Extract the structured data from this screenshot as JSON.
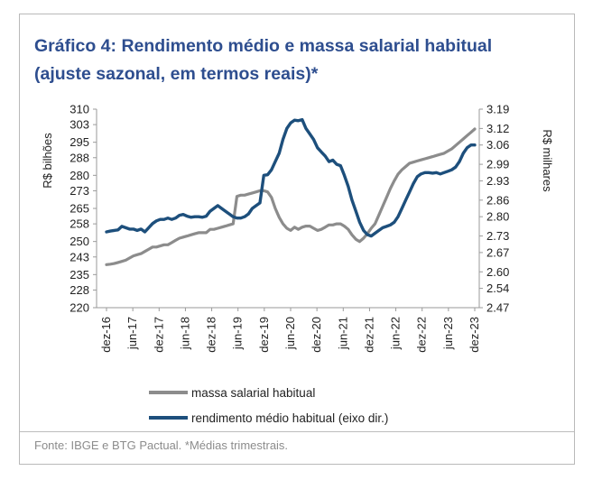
{
  "header": {
    "title_line1": "Gráfico 4: Rendimento médio e massa salarial habitual",
    "title_line2": "(ajuste sazonal, em termos reais)*"
  },
  "footer": {
    "source": "Fonte: IBGE e BTG Pactual. *Médias trimestrais."
  },
  "colors": {
    "title": "#2e4e8f",
    "massa": "#8c8c8c",
    "rendimento": "#1d4f7c"
  },
  "chart_data": {
    "type": "line",
    "ylabel": "R$ bilhões",
    "y2label": "R$ milhares",
    "ylim": [
      220,
      310
    ],
    "y2lim": [
      2.47,
      3.19
    ],
    "yticks": [
      "310",
      "303",
      "295",
      "288",
      "280",
      "273",
      "265",
      "258",
      "250",
      "243",
      "235",
      "228",
      "220"
    ],
    "y2ticks": [
      "3.19",
      "3.12",
      "3.06",
      "2.99",
      "2.93",
      "2.86",
      "2.80",
      "2.73",
      "2.67",
      "2.60",
      "2.54",
      "2.47"
    ],
    "xticks": [
      "dez-16",
      "jun-17",
      "dez-17",
      "jun-18",
      "dez-18",
      "jun-19",
      "dez-19",
      "jun-20",
      "dez-20",
      "jun-21",
      "dez-21",
      "jun-22",
      "dez-22",
      "jun-23",
      "dez-23"
    ],
    "legend_position": "bottom",
    "grid": false,
    "series": [
      {
        "name": "massa salarial habitual",
        "axis": "left",
        "values": [
          239.5,
          239.7,
          240.0,
          240.5,
          241.0,
          241.5,
          242.5,
          243.5,
          244.0,
          244.5,
          245.5,
          246.5,
          247.5,
          247.5,
          248.0,
          248.5,
          248.5,
          249.5,
          250.5,
          251.5,
          252.0,
          252.5,
          253.0,
          253.5,
          254.0,
          254.0,
          254.0,
          255.5,
          255.5,
          256.0,
          256.5,
          257.0,
          257.5,
          258.0,
          270.5,
          271.0,
          271.0,
          271.5,
          272.0,
          272.5,
          273.0,
          273.0,
          272.5,
          270.0,
          265.0,
          261.0,
          258.0,
          256.0,
          255.0,
          256.5,
          255.5,
          256.5,
          257.0,
          257.0,
          256.0,
          255.0,
          255.5,
          256.5,
          257.5,
          257.5,
          258.0,
          258.0,
          257.0,
          255.5,
          253.0,
          251.0,
          250.0,
          251.5,
          253.5,
          256.0,
          258.0,
          262.0,
          266.0,
          270.0,
          274.0,
          277.5,
          280.5,
          282.5,
          284.0,
          285.5,
          286.0,
          286.5,
          287.0,
          287.5,
          288.0,
          288.5,
          289.0,
          289.5,
          290.0,
          291.0,
          292.0,
          293.5,
          295.0,
          296.5,
          298.0,
          299.5,
          301.0
        ]
      },
      {
        "name": "rendimento médio habitual (eixo dir.)",
        "axis": "right",
        "values": [
          2.745,
          2.748,
          2.75,
          2.752,
          2.765,
          2.76,
          2.755,
          2.755,
          2.75,
          2.755,
          2.745,
          2.76,
          2.775,
          2.785,
          2.79,
          2.79,
          2.795,
          2.79,
          2.795,
          2.805,
          2.808,
          2.802,
          2.798,
          2.8,
          2.8,
          2.798,
          2.802,
          2.82,
          2.83,
          2.84,
          2.83,
          2.82,
          2.81,
          2.8,
          2.795,
          2.795,
          2.8,
          2.81,
          2.83,
          2.84,
          2.85,
          2.95,
          2.952,
          2.97,
          3.0,
          3.03,
          3.08,
          3.12,
          3.14,
          3.15,
          3.148,
          3.152,
          3.12,
          3.1,
          3.08,
          3.05,
          3.035,
          3.02,
          3.0,
          3.005,
          2.99,
          2.985,
          2.95,
          2.91,
          2.86,
          2.82,
          2.78,
          2.75,
          2.735,
          2.73,
          2.74,
          2.75,
          2.76,
          2.765,
          2.77,
          2.78,
          2.8,
          2.83,
          2.86,
          2.89,
          2.92,
          2.945,
          2.955,
          2.96,
          2.96,
          2.958,
          2.96,
          2.955,
          2.96,
          2.965,
          2.97,
          2.98,
          3.0,
          3.03,
          3.05,
          3.06,
          3.06
        ]
      }
    ]
  }
}
